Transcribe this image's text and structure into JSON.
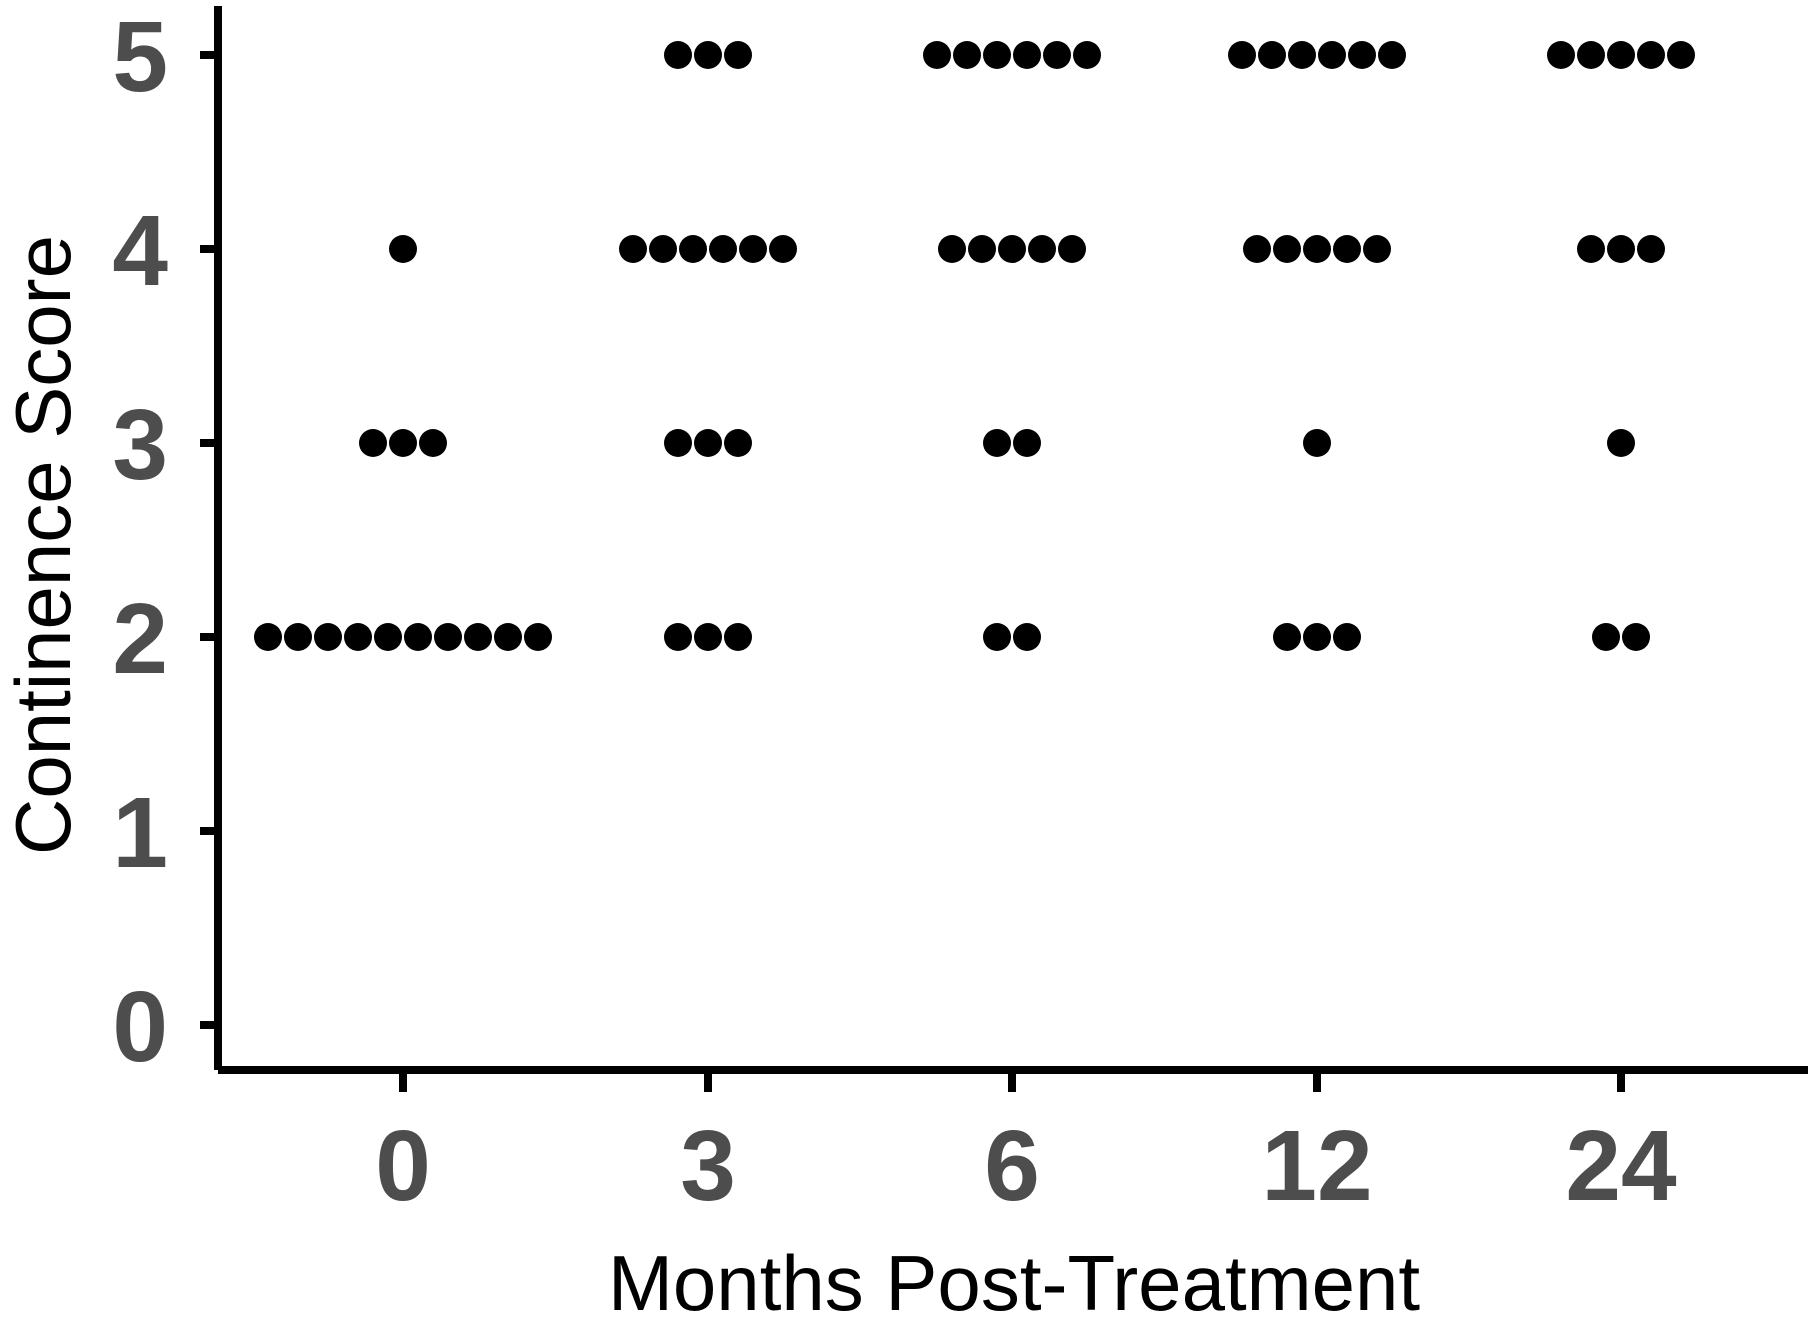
{
  "chart_data": {
    "type": "scatter",
    "subtype": "dot-plot",
    "title": "",
    "xlabel": "Months Post-Treatment",
    "ylabel": "Continence Score",
    "categories": [
      "0",
      "3",
      "6",
      "12",
      "24"
    ],
    "yticks": [
      0,
      1,
      2,
      3,
      4,
      5
    ],
    "ylim": [
      0,
      5
    ],
    "grid": false,
    "legend": "none",
    "counts": [
      {
        "x": "0",
        "score_counts": {
          "2": 10,
          "3": 3,
          "4": 1,
          "5": 0
        }
      },
      {
        "x": "3",
        "score_counts": {
          "2": 3,
          "3": 3,
          "4": 6,
          "5": 3
        }
      },
      {
        "x": "6",
        "score_counts": {
          "2": 2,
          "3": 2,
          "4": 5,
          "5": 6
        }
      },
      {
        "x": "12",
        "score_counts": {
          "2": 3,
          "3": 1,
          "4": 5,
          "5": 6
        }
      },
      {
        "x": "24",
        "score_counts": {
          "2": 2,
          "3": 1,
          "4": 3,
          "5": 5
        }
      }
    ],
    "colors": {
      "points": "#000000",
      "axis": "#000000",
      "tick_labels": "#4d4d4d",
      "axis_titles": "#000000"
    }
  }
}
